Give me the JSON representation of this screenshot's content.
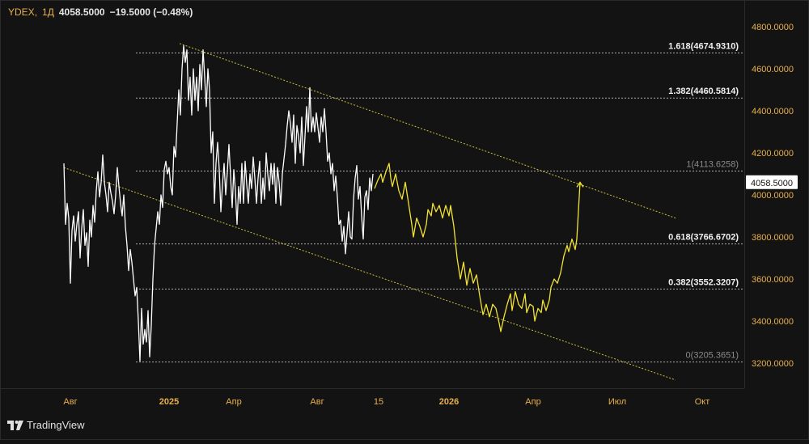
{
  "header": {
    "symbol": "YDEX",
    "separator": ",",
    "timeframe": "1Д",
    "last": "4058.5000",
    "change": "−19.5000 (−0.48%)"
  },
  "brand": {
    "name": "TradingView"
  },
  "colors": {
    "background": "#131313",
    "history_line": "#ffffff",
    "projection_line": "#f2e233",
    "channel_lines": "#c9c23a",
    "fib_lines": "#e0e0e0",
    "axis_text": "#e8b04b"
  },
  "chart_data": {
    "type": "line",
    "title": "",
    "xlabel": "",
    "ylabel": "",
    "ylim": [
      3140,
      4830
    ],
    "x_ticks": [
      "Авг",
      "2025",
      "Апр",
      "Авг",
      "15",
      "2026",
      "Апр",
      "Июл",
      "Окт"
    ],
    "y_ticks": [
      "4800.0000",
      "4600.0000",
      "4400.0000",
      "4200.0000",
      "4000.0000",
      "3800.0000",
      "3600.0000",
      "3400.0000",
      "3200.0000"
    ],
    "y_tick_values": [
      4800,
      4600,
      4400,
      4200,
      4000,
      3800,
      3600,
      3400,
      3200
    ],
    "last_price_label": "4058.5000",
    "last_price": 4058.5,
    "fib_levels": [
      {
        "label": "1.618(4674.9310)",
        "value": 4674.931
      },
      {
        "label": "1.382(4460.5814)",
        "value": 4460.5814
      },
      {
        "label": "1(4113.6258)",
        "value": 4113.6258
      },
      {
        "label": "0.618(3766.6702)",
        "value": 3766.6702
      },
      {
        "label": "0.382(3552.3207)",
        "value": 3552.3207
      },
      {
        "label": "0(3205.3651)",
        "value": 3205.3651
      }
    ],
    "series": [
      {
        "values": [
          [
            0,
            4150
          ],
          [
            2,
            3860
          ],
          [
            4,
            3960
          ],
          [
            6,
            3890
          ],
          [
            8,
            3580
          ],
          [
            10,
            3830
          ],
          [
            12,
            3900
          ],
          [
            14,
            3780
          ],
          [
            16,
            3860
          ],
          [
            18,
            3920
          ],
          [
            20,
            3700
          ],
          [
            22,
            3840
          ],
          [
            24,
            3930
          ],
          [
            26,
            3760
          ],
          [
            28,
            3820
          ],
          [
            30,
            3660
          ],
          [
            32,
            3880
          ],
          [
            34,
            3800
          ],
          [
            36,
            3950
          ],
          [
            38,
            3870
          ],
          [
            40,
            4020
          ],
          [
            42,
            4110
          ],
          [
            44,
            3990
          ],
          [
            46,
            4060
          ],
          [
            48,
            4190
          ],
          [
            50,
            4060
          ],
          [
            52,
            4000
          ],
          [
            54,
            3920
          ],
          [
            56,
            4060
          ],
          [
            58,
            4010
          ],
          [
            60,
            3970
          ],
          [
            62,
            3910
          ],
          [
            64,
            4000
          ],
          [
            66,
            4130
          ],
          [
            68,
            4040
          ],
          [
            70,
            3960
          ],
          [
            72,
            3900
          ],
          [
            74,
            4000
          ],
          [
            76,
            3850
          ],
          [
            78,
            3760
          ],
          [
            80,
            3640
          ],
          [
            82,
            3740
          ],
          [
            84,
            3680
          ],
          [
            86,
            3600
          ],
          [
            88,
            3520
          ],
          [
            90,
            3560
          ],
          [
            92,
            3400
          ],
          [
            94,
            3210
          ],
          [
            96,
            3460
          ],
          [
            98,
            3290
          ],
          [
            100,
            3360
          ],
          [
            102,
            3300
          ],
          [
            104,
            3450
          ],
          [
            106,
            3230
          ],
          [
            108,
            3380
          ],
          [
            110,
            3600
          ],
          [
            112,
            3760
          ],
          [
            114,
            3840
          ],
          [
            116,
            3920
          ],
          [
            118,
            3860
          ],
          [
            120,
            4000
          ],
          [
            122,
            3940
          ],
          [
            124,
            4120
          ],
          [
            126,
            4160
          ],
          [
            128,
            4100
          ],
          [
            130,
            4130
          ],
          [
            132,
            4040
          ],
          [
            134,
            4000
          ],
          [
            136,
            4230
          ],
          [
            138,
            4180
          ],
          [
            140,
            4340
          ],
          [
            142,
            4500
          ],
          [
            144,
            4380
          ],
          [
            146,
            4600
          ],
          [
            148,
            4710
          ],
          [
            150,
            4630
          ],
          [
            152,
            4690
          ],
          [
            154,
            4450
          ],
          [
            156,
            4560
          ],
          [
            158,
            4380
          ],
          [
            160,
            4600
          ],
          [
            162,
            4450
          ],
          [
            164,
            4560
          ],
          [
            166,
            4400
          ],
          [
            168,
            4620
          ],
          [
            170,
            4500
          ],
          [
            172,
            4690
          ],
          [
            174,
            4560
          ],
          [
            176,
            4420
          ],
          [
            178,
            4600
          ],
          [
            180,
            4500
          ],
          [
            182,
            4200
          ],
          [
            184,
            4300
          ],
          [
            186,
            3960
          ],
          [
            188,
            4150
          ],
          [
            190,
            4250
          ],
          [
            192,
            4120
          ],
          [
            194,
            3920
          ],
          [
            196,
            4050
          ],
          [
            198,
            4150
          ],
          [
            200,
            4000
          ],
          [
            202,
            4110
          ],
          [
            204,
            4240
          ],
          [
            206,
            4090
          ],
          [
            208,
            3940
          ],
          [
            210,
            4120
          ],
          [
            212,
            4020
          ],
          [
            214,
            3860
          ],
          [
            216,
            4040
          ],
          [
            218,
            3960
          ],
          [
            220,
            4150
          ],
          [
            222,
            3960
          ],
          [
            224,
            4160
          ],
          [
            226,
            4050
          ],
          [
            228,
            3960
          ],
          [
            230,
            4100
          ],
          [
            232,
            4030
          ],
          [
            234,
            4180
          ],
          [
            236,
            4080
          ],
          [
            238,
            3960
          ],
          [
            240,
            4080
          ],
          [
            242,
            4160
          ],
          [
            244,
            3960
          ],
          [
            246,
            4080
          ],
          [
            248,
            3980
          ],
          [
            250,
            4200
          ],
          [
            252,
            4100
          ],
          [
            254,
            4020
          ],
          [
            256,
            4150
          ],
          [
            258,
            4050
          ],
          [
            260,
            4150
          ],
          [
            262,
            3960
          ],
          [
            264,
            4130
          ],
          [
            266,
            4060
          ],
          [
            268,
            3950
          ],
          [
            270,
            4100
          ],
          [
            272,
            4170
          ],
          [
            274,
            4240
          ],
          [
            276,
            4330
          ],
          [
            278,
            4400
          ],
          [
            280,
            4340
          ],
          [
            282,
            4250
          ],
          [
            284,
            4380
          ],
          [
            286,
            4150
          ],
          [
            288,
            4330
          ],
          [
            290,
            4280
          ],
          [
            292,
            4200
          ],
          [
            294,
            4370
          ],
          [
            296,
            4140
          ],
          [
            298,
            4280
          ],
          [
            300,
            4420
          ],
          [
            302,
            4300
          ],
          [
            304,
            4510
          ],
          [
            306,
            4300
          ],
          [
            308,
            4370
          ],
          [
            310,
            4300
          ],
          [
            312,
            4390
          ],
          [
            314,
            4320
          ],
          [
            316,
            4250
          ],
          [
            318,
            4370
          ],
          [
            320,
            4300
          ],
          [
            322,
            4410
          ],
          [
            324,
            4300
          ],
          [
            326,
            4160
          ],
          [
            328,
            4200
          ],
          [
            330,
            4100
          ],
          [
            332,
            4150
          ],
          [
            334,
            4020
          ],
          [
            336,
            4090
          ],
          [
            338,
            3990
          ],
          [
            340,
            3860
          ],
          [
            342,
            3880
          ],
          [
            344,
            3780
          ],
          [
            346,
            3850
          ],
          [
            348,
            3720
          ],
          [
            350,
            3820
          ],
          [
            352,
            3920
          ],
          [
            354,
            3800
          ],
          [
            356,
            3790
          ],
          [
            358,
            3980
          ],
          [
            360,
            4080
          ],
          [
            362,
            4140
          ],
          [
            364,
            3980
          ],
          [
            366,
            4040
          ],
          [
            368,
            3900
          ],
          [
            370,
            3790
          ],
          [
            372,
            3990
          ],
          [
            374,
            4020
          ],
          [
            376,
            3930
          ],
          [
            378,
            4080
          ],
          [
            380,
            4020
          ],
          [
            382,
            4100
          ]
        ]
      },
      {
        "values": [
          [
            384,
            4030
          ],
          [
            388,
            4070
          ],
          [
            392,
            4100
          ],
          [
            394,
            4060
          ],
          [
            398,
            4110
          ],
          [
            402,
            4150
          ],
          [
            404,
            4080
          ],
          [
            406,
            4040
          ],
          [
            410,
            4100
          ],
          [
            414,
            4020
          ],
          [
            418,
            3980
          ],
          [
            422,
            4060
          ],
          [
            426,
            3960
          ],
          [
            430,
            3860
          ],
          [
            432,
            3800
          ],
          [
            436,
            3890
          ],
          [
            440,
            3850
          ],
          [
            444,
            3800
          ],
          [
            448,
            3860
          ],
          [
            450,
            3930
          ],
          [
            454,
            3900
          ],
          [
            456,
            3960
          ],
          [
            460,
            3920
          ],
          [
            464,
            3950
          ],
          [
            468,
            3890
          ],
          [
            472,
            3950
          ],
          [
            476,
            3900
          ],
          [
            478,
            3950
          ],
          [
            482,
            3850
          ],
          [
            486,
            3700
          ],
          [
            490,
            3600
          ],
          [
            494,
            3680
          ],
          [
            498,
            3570
          ],
          [
            502,
            3650
          ],
          [
            506,
            3580
          ],
          [
            510,
            3620
          ],
          [
            514,
            3520
          ],
          [
            518,
            3430
          ],
          [
            522,
            3480
          ],
          [
            526,
            3420
          ],
          [
            530,
            3480
          ],
          [
            534,
            3460
          ],
          [
            538,
            3390
          ],
          [
            540,
            3350
          ],
          [
            544,
            3420
          ],
          [
            548,
            3480
          ],
          [
            552,
            3530
          ],
          [
            554,
            3450
          ],
          [
            558,
            3540
          ],
          [
            562,
            3480
          ],
          [
            566,
            3460
          ],
          [
            570,
            3530
          ],
          [
            572,
            3440
          ],
          [
            576,
            3480
          ],
          [
            580,
            3470
          ],
          [
            582,
            3400
          ],
          [
            586,
            3460
          ],
          [
            590,
            3440
          ],
          [
            592,
            3500
          ],
          [
            596,
            3450
          ],
          [
            600,
            3500
          ],
          [
            602,
            3560
          ],
          [
            606,
            3600
          ],
          [
            610,
            3580
          ],
          [
            614,
            3630
          ],
          [
            618,
            3710
          ],
          [
            622,
            3760
          ],
          [
            624,
            3730
          ],
          [
            628,
            3790
          ],
          [
            632,
            3740
          ],
          [
            634,
            3790
          ],
          [
            638,
            4060
          ]
        ]
      }
    ],
    "channel": {
      "upper": [
        [
          143,
          4720
        ],
        [
          756,
          3890
        ]
      ],
      "lower": [
        [
          0,
          4130
        ],
        [
          756,
          3120
        ]
      ]
    },
    "annotation_arrow": {
      "from": [
        636,
        3770
      ],
      "to": [
        638,
        4060
      ]
    }
  }
}
